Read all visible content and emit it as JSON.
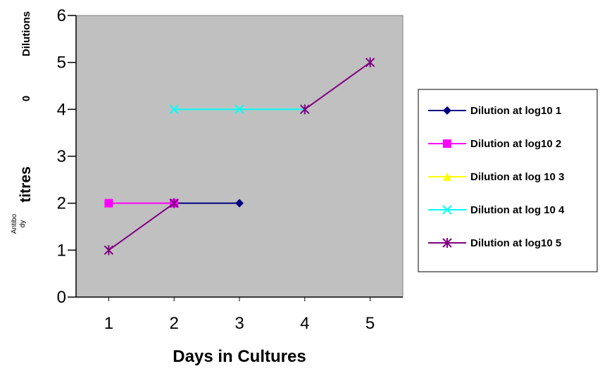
{
  "chart_data": {
    "type": "line",
    "title": "",
    "xlabel": "Days in Cultures",
    "ylabel_fragments": [
      "Antibo",
      "dy",
      "titres",
      "0",
      "Dilutions"
    ],
    "x": [
      1,
      2,
      3,
      4,
      5
    ],
    "xlim": [
      0.5,
      5.5
    ],
    "ylim": [
      0,
      6
    ],
    "yticks": [
      0,
      1,
      2,
      3,
      4,
      5,
      6
    ],
    "plot_background": "#c0c0c0",
    "grid": false,
    "legend_position": "right",
    "series": [
      {
        "name": "Dilution at log10 1",
        "color": "#000080",
        "marker": "diamond",
        "values": [
          null,
          2,
          2,
          null,
          null
        ]
      },
      {
        "name": "Dilution at log10 2",
        "color": "#ff00ff",
        "marker": "square",
        "values": [
          2,
          2,
          null,
          null,
          null
        ]
      },
      {
        "name": "Dilution at log 10 3",
        "color": "#ffff00",
        "marker": "triangle",
        "values": [
          null,
          null,
          null,
          null,
          null
        ]
      },
      {
        "name": "Dilution at log 10 4",
        "color": "#00ffff",
        "marker": "x",
        "values": [
          null,
          4,
          4,
          4,
          null
        ]
      },
      {
        "name": "Dilution at log10 5",
        "color": "#800080",
        "marker": "star",
        "values": [
          1,
          2,
          null,
          4,
          5
        ]
      }
    ]
  }
}
